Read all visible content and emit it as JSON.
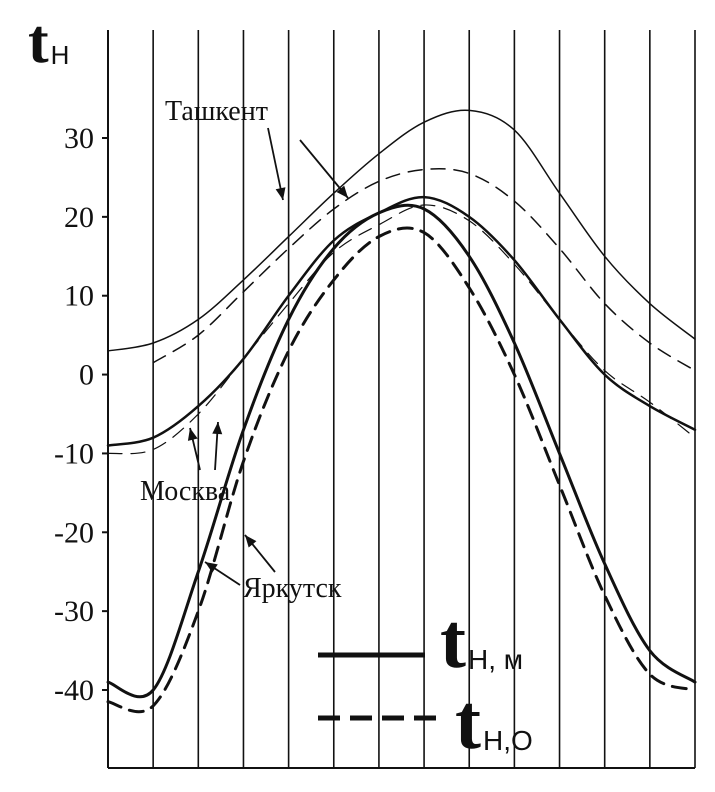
{
  "chart_data": {
    "type": "line",
    "ylabel_main": "t",
    "ylabel_sub": "Н",
    "ylim": [
      -45,
      37
    ],
    "yticks": [
      30,
      20,
      10,
      0,
      -10,
      -20,
      -30,
      -40
    ],
    "ytick_labels": [
      "30",
      "20",
      "10",
      "0",
      "-10",
      "-20",
      "-30",
      "-40"
    ],
    "xlim": [
      0,
      13
    ],
    "x": [
      0,
      1,
      2,
      3,
      4,
      5,
      6,
      7,
      8,
      9,
      10,
      11,
      12,
      13
    ],
    "xticks": [
      1,
      2,
      3,
      4,
      5,
      6,
      7,
      8,
      9,
      10,
      11,
      12
    ],
    "grid": {
      "vertical": true,
      "horizontal": false
    },
    "cities": [
      {
        "label": "Ташкент"
      },
      {
        "label": "Москва"
      },
      {
        "label": "Яркутск"
      }
    ],
    "series": [
      {
        "style": "solid",
        "width": 1.5,
        "y": [
          3,
          4,
          7,
          12,
          17.5,
          23,
          28,
          32,
          33.5,
          31,
          23,
          15,
          9,
          4.5
        ]
      },
      {
        "style": "dashed",
        "width": 1.5,
        "y": [
          null,
          1.5,
          5,
          10.5,
          16,
          21,
          24.5,
          26,
          25.5,
          22,
          16,
          9,
          4,
          0.5
        ]
      },
      {
        "style": "solid",
        "width": 2.5,
        "y": [
          -9,
          -8,
          -4,
          2,
          10,
          17,
          20.5,
          22.5,
          20,
          14.5,
          7,
          0,
          -4,
          -7
        ]
      },
      {
        "style": "dashed",
        "width": 1.2,
        "y": [
          -10,
          -9.5,
          -5,
          2,
          9,
          15.5,
          19,
          21.5,
          19.5,
          14,
          7,
          0.5,
          -3.5,
          -8
        ]
      },
      {
        "style": "solid",
        "width": 3,
        "y": [
          -39,
          -40,
          -25,
          -7,
          7,
          16,
          20.5,
          21,
          15,
          4,
          -10,
          -24,
          -35,
          -39
        ]
      },
      {
        "style": "dashed",
        "width": 3,
        "y": [
          -41.5,
          -42,
          -30,
          -11,
          3,
          12,
          17.5,
          18,
          11,
          0,
          -14,
          -28,
          -38,
          -40
        ]
      }
    ],
    "legend": {
      "position": "bottom-right",
      "entries": [
        {
          "style": "solid",
          "label_main": "t",
          "label_sub": "Н, м"
        },
        {
          "style": "dashed",
          "label_main": "t",
          "label_sub": "Н,О"
        }
      ]
    }
  }
}
